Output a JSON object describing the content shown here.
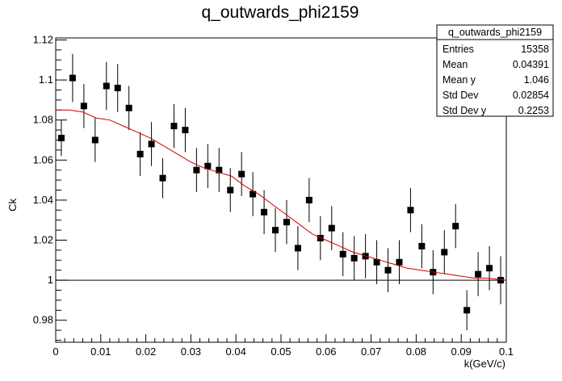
{
  "chart_data": {
    "type": "scatter",
    "title": "q_outwards_phi2159",
    "xlabel": "k(GeV/c)",
    "ylabel": "Ck",
    "xlim": [
      0,
      0.1
    ],
    "ylim": [
      0.969,
      1.121
    ],
    "x_ticks": [
      0,
      0.01,
      0.02,
      0.03,
      0.04,
      0.05,
      0.06,
      0.07,
      0.08,
      0.09,
      0.1
    ],
    "x_tick_labels": [
      "0",
      "0.01",
      "0.02",
      "0.03",
      "0.04",
      "0.05",
      "0.06",
      "0.07",
      "0.08",
      "0.09",
      "0.1"
    ],
    "y_ticks": [
      0.98,
      1.0,
      1.02,
      1.04,
      1.06,
      1.08,
      1.1,
      1.12
    ],
    "y_tick_labels": [
      "0.98",
      "1",
      "1.02",
      "1.04",
      "1.06",
      "1.08",
      "1.1",
      "1.12"
    ],
    "reference_line_y": 1.0,
    "stats_box": {
      "title": "q_outwards_phi2159",
      "rows": [
        {
          "label": "Entries",
          "value": "15358"
        },
        {
          "label": "Mean",
          "value": "0.04391"
        },
        {
          "label": "Mean y",
          "value": "1.046"
        },
        {
          "label": "Std Dev",
          "value": "0.02854"
        },
        {
          "label": "Std Dev y",
          "value": "0.2253"
        }
      ]
    },
    "series": [
      {
        "marker": "square",
        "color": "#000000",
        "x": [
          0.00125,
          0.00375,
          0.00625,
          0.00875,
          0.01125,
          0.01375,
          0.01625,
          0.01875,
          0.02125,
          0.02375,
          0.02625,
          0.02875,
          0.03125,
          0.03375,
          0.03625,
          0.03875,
          0.04125,
          0.04375,
          0.04625,
          0.04875,
          0.05125,
          0.05375,
          0.05625,
          0.05875,
          0.06125,
          0.06375,
          0.06625,
          0.06875,
          0.07125,
          0.07375,
          0.07625,
          0.07875,
          0.08125,
          0.08375,
          0.08625,
          0.08875,
          0.09125,
          0.09375,
          0.09625,
          0.09875
        ],
        "y": [
          1.071,
          1.101,
          1.087,
          1.07,
          1.097,
          1.096,
          1.086,
          1.063,
          1.068,
          1.051,
          1.077,
          1.075,
          1.055,
          1.057,
          1.055,
          1.045,
          1.053,
          1.043,
          1.034,
          1.025,
          1.029,
          1.016,
          1.04,
          1.021,
          1.026,
          1.013,
          1.011,
          1.012,
          1.009,
          1.005,
          1.009,
          1.035,
          1.017,
          1.004,
          1.014,
          1.027,
          0.985,
          1.003,
          1.006,
          1.0
        ],
        "err": [
          0.009,
          0.012,
          0.011,
          0.011,
          0.012,
          0.012,
          0.011,
          0.011,
          0.011,
          0.01,
          0.011,
          0.011,
          0.011,
          0.011,
          0.011,
          0.011,
          0.011,
          0.011,
          0.011,
          0.011,
          0.011,
          0.011,
          0.011,
          0.011,
          0.011,
          0.011,
          0.011,
          0.011,
          0.011,
          0.011,
          0.011,
          0.011,
          0.011,
          0.011,
          0.011,
          0.011,
          0.01,
          0.011,
          0.011,
          0.012
        ]
      },
      {
        "marker": "line",
        "color": "#cc0000",
        "x": [
          0.0,
          0.003,
          0.006,
          0.009,
          0.012,
          0.015,
          0.018,
          0.021,
          0.024,
          0.027,
          0.03,
          0.033,
          0.036,
          0.039,
          0.042,
          0.045,
          0.048,
          0.051,
          0.054,
          0.057,
          0.06,
          0.063,
          0.066,
          0.069,
          0.072,
          0.075,
          0.078,
          0.081,
          0.084,
          0.087,
          0.09,
          0.093,
          0.096,
          0.1
        ],
        "y": [
          1.085,
          1.085,
          1.084,
          1.081,
          1.08,
          1.077,
          1.074,
          1.071,
          1.067,
          1.063,
          1.059,
          1.056,
          1.054,
          1.052,
          1.047,
          1.043,
          1.038,
          1.033,
          1.028,
          1.023,
          1.02,
          1.017,
          1.014,
          1.012,
          1.01,
          1.008,
          1.006,
          1.005,
          1.004,
          1.003,
          1.002,
          1.001,
          1.001,
          1.0
        ]
      }
    ]
  }
}
